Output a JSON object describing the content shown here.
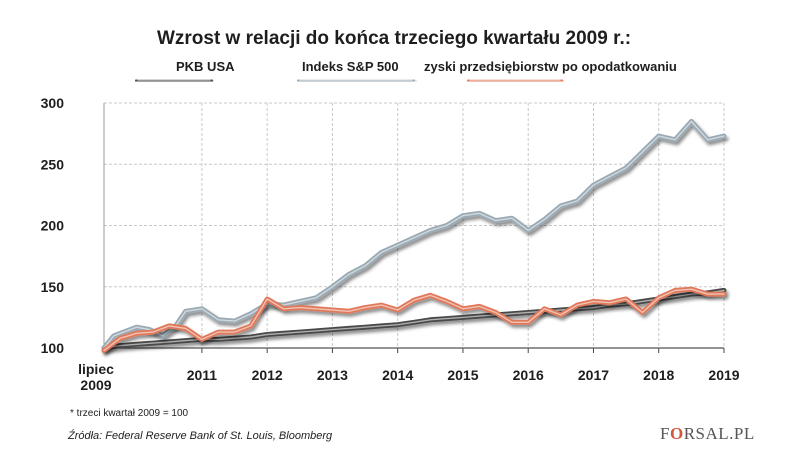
{
  "chart_data": {
    "type": "line",
    "title": "Wzrost w relacji do końca trzeciego kwartału 2009 r.:",
    "xlabel": "",
    "ylabel": "",
    "x_range": [
      2009.5,
      2019.0
    ],
    "ylim": [
      100,
      300
    ],
    "y_ticks": [
      100,
      150,
      200,
      250,
      300
    ],
    "x_tick_labels": [
      {
        "x": 2009.5,
        "line1": "lipiec",
        "line2": "2009"
      },
      {
        "x": 2011,
        "line1": "2011"
      },
      {
        "x": 2012,
        "line1": "2012"
      },
      {
        "x": 2013,
        "line1": "2013"
      },
      {
        "x": 2014,
        "line1": "2014"
      },
      {
        "x": 2015,
        "line1": "2015"
      },
      {
        "x": 2016,
        "line1": "2016"
      },
      {
        "x": 2017,
        "line1": "2017"
      },
      {
        "x": 2018,
        "line1": "2018"
      },
      {
        "x": 2019,
        "line1": "2019"
      }
    ],
    "grid": true,
    "legend_placement": "top",
    "series": [
      {
        "name": "PKB USA",
        "color": "#4a4a4a",
        "points": [
          [
            2009.5,
            100
          ],
          [
            2009.75,
            102
          ],
          [
            2010,
            103
          ],
          [
            2010.25,
            104
          ],
          [
            2010.5,
            105
          ],
          [
            2010.75,
            106
          ],
          [
            2011,
            107
          ],
          [
            2011.25,
            107
          ],
          [
            2011.5,
            108
          ],
          [
            2011.75,
            109
          ],
          [
            2012,
            111
          ],
          [
            2012.25,
            112
          ],
          [
            2012.5,
            113
          ],
          [
            2012.75,
            114
          ],
          [
            2013,
            115
          ],
          [
            2013.25,
            116
          ],
          [
            2013.5,
            117
          ],
          [
            2013.75,
            118
          ],
          [
            2014,
            119
          ],
          [
            2014.25,
            121
          ],
          [
            2014.5,
            123
          ],
          [
            2014.75,
            124
          ],
          [
            2015,
            125
          ],
          [
            2015.25,
            126
          ],
          [
            2015.5,
            127
          ],
          [
            2015.75,
            128
          ],
          [
            2016,
            129
          ],
          [
            2016.25,
            130
          ],
          [
            2016.5,
            131
          ],
          [
            2016.75,
            132
          ],
          [
            2017,
            133
          ],
          [
            2017.25,
            135
          ],
          [
            2017.5,
            136
          ],
          [
            2017.75,
            138
          ],
          [
            2018,
            140
          ],
          [
            2018.25,
            142
          ],
          [
            2018.5,
            144
          ],
          [
            2018.75,
            145
          ],
          [
            2019,
            147
          ]
        ]
      },
      {
        "name": "Indeks S&P 500",
        "color": "#9aaab4",
        "points": [
          [
            2009.5,
            100
          ],
          [
            2009.65,
            110
          ],
          [
            2009.8,
            113
          ],
          [
            2010,
            117
          ],
          [
            2010.2,
            115
          ],
          [
            2010.4,
            110
          ],
          [
            2010.6,
            118
          ],
          [
            2010.75,
            130
          ],
          [
            2011,
            132
          ],
          [
            2011.25,
            123
          ],
          [
            2011.5,
            122
          ],
          [
            2011.75,
            128
          ],
          [
            2012,
            136
          ],
          [
            2012.25,
            135
          ],
          [
            2012.5,
            138
          ],
          [
            2012.75,
            141
          ],
          [
            2013,
            150
          ],
          [
            2013.25,
            160
          ],
          [
            2013.5,
            167
          ],
          [
            2013.75,
            178
          ],
          [
            2014,
            184
          ],
          [
            2014.25,
            190
          ],
          [
            2014.5,
            196
          ],
          [
            2014.75,
            200
          ],
          [
            2015,
            208
          ],
          [
            2015.25,
            210
          ],
          [
            2015.5,
            204
          ],
          [
            2015.75,
            206
          ],
          [
            2016,
            196
          ],
          [
            2016.25,
            205
          ],
          [
            2016.5,
            216
          ],
          [
            2016.75,
            220
          ],
          [
            2017,
            233
          ],
          [
            2017.25,
            240
          ],
          [
            2017.5,
            247
          ],
          [
            2017.75,
            260
          ],
          [
            2018,
            273
          ],
          [
            2018.25,
            270
          ],
          [
            2018.5,
            285
          ],
          [
            2018.75,
            270
          ],
          [
            2019,
            273
          ]
        ]
      },
      {
        "name": "zyski przedsiębiorstw po opodatkowaniu",
        "color": "#e0785a",
        "points": [
          [
            2009.5,
            98
          ],
          [
            2009.75,
            108
          ],
          [
            2010,
            112
          ],
          [
            2010.25,
            113
          ],
          [
            2010.5,
            118
          ],
          [
            2010.75,
            116
          ],
          [
            2011,
            107
          ],
          [
            2011.25,
            113
          ],
          [
            2011.5,
            113
          ],
          [
            2011.75,
            118
          ],
          [
            2012,
            140
          ],
          [
            2012.25,
            132
          ],
          [
            2012.5,
            133
          ],
          [
            2012.75,
            132
          ],
          [
            2013,
            131
          ],
          [
            2013.25,
            130
          ],
          [
            2013.5,
            133
          ],
          [
            2013.75,
            135
          ],
          [
            2014,
            131
          ],
          [
            2014.25,
            139
          ],
          [
            2014.5,
            143
          ],
          [
            2014.75,
            138
          ],
          [
            2015,
            132
          ],
          [
            2015.25,
            134
          ],
          [
            2015.5,
            129
          ],
          [
            2015.75,
            121
          ],
          [
            2016,
            121
          ],
          [
            2016.25,
            132
          ],
          [
            2016.5,
            127
          ],
          [
            2016.75,
            135
          ],
          [
            2017,
            138
          ],
          [
            2017.25,
            137
          ],
          [
            2017.5,
            140
          ],
          [
            2017.75,
            129
          ],
          [
            2018,
            141
          ],
          [
            2018.25,
            147
          ],
          [
            2018.5,
            148
          ],
          [
            2018.75,
            144
          ],
          [
            2019,
            144
          ]
        ]
      }
    ]
  },
  "footnote": "* trzeci kwartał 2009 = 100",
  "source": "Źródła: Federal Reserve Bank of St. Louis, Bloomberg",
  "brand": {
    "part1": "F",
    "part2": "O",
    "part3": "RSAL.PL"
  }
}
